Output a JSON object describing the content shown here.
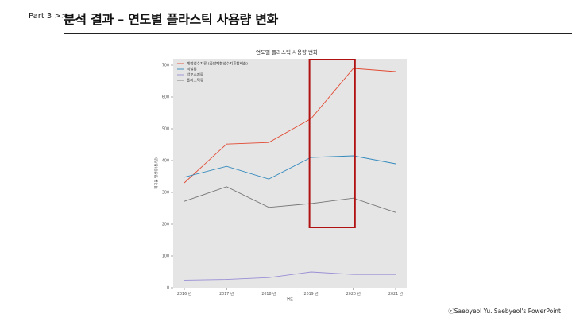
{
  "header": {
    "part_label": "Part 3  >>",
    "title": "분석 결과 – 연도별 플라스틱 사용량 변화"
  },
  "footer": {
    "credit": "ⓒSaebyeol Yu. Saebyeol's PowerPoint"
  },
  "colors": {
    "plot_bg": "#e5e5e5",
    "highlight_box": "#b01212"
  },
  "chart_data": {
    "type": "line",
    "title": "연도별 플라스틱 사용량 변화",
    "xlabel": "연도",
    "ylabel": "폐기물 발생량(톤/일)",
    "categories": [
      "2016 년",
      "2017 년",
      "2018 년",
      "2019 년",
      "2020 년",
      "2021 년"
    ],
    "ylim": [
      0,
      720
    ],
    "yticks": [
      0,
      100,
      200,
      300,
      400,
      500,
      600,
      700
    ],
    "grid": false,
    "legend_position": "top-left",
    "series": [
      {
        "name": "폐합성수지류 (종합폐합성수지혼합배출)",
        "color": "#e24a33",
        "values": [
          330,
          452,
          457,
          532,
          690,
          680
        ]
      },
      {
        "name": "비닐류",
        "color": "#348abd",
        "values": [
          348,
          382,
          342,
          410,
          415,
          390
        ]
      },
      {
        "name": "발포수지류",
        "color": "#988ed5",
        "values": [
          24,
          26,
          32,
          50,
          42,
          42
        ]
      },
      {
        "name": "플라스틱류",
        "color": "#777777",
        "values": [
          272,
          318,
          253,
          265,
          282,
          237
        ]
      }
    ],
    "highlight": {
      "x_from": "2019 년",
      "x_to": "2020 년"
    }
  }
}
